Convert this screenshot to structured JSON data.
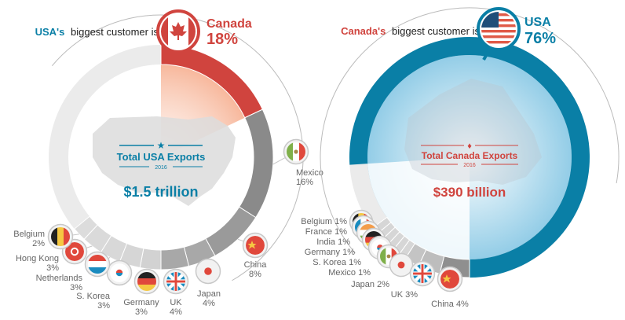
{
  "colors": {
    "usa_blue": "#0a7fa6",
    "canada_red": "#d0443e",
    "ring_light": "#ebebeb",
    "ring_mid": "#c8c8c8",
    "ring_dark": "#8a8a8a",
    "label_gray": "#666666"
  },
  "usa_panel": {
    "header_prefix": "USA's",
    "header_rest": "biggest customer is",
    "top_customer": "Canada",
    "top_customer_pct": "18%",
    "top_customer_icon": "canada-flag-icon",
    "center_icon": "star-icon",
    "center_title": "Total USA Exports",
    "center_year": "2016",
    "center_value": "$1.5 trillion"
  },
  "canada_panel": {
    "header_prefix": "Canada's",
    "header_rest": "biggest customer is",
    "top_customer": "USA",
    "top_customer_pct": "76%",
    "top_customer_icon": "usa-flag-icon",
    "center_icon": "maple-leaf-icon",
    "center_title": "Total Canada Exports",
    "center_year": "2016",
    "center_value": "$390 billion"
  },
  "chart_data": [
    {
      "type": "pie",
      "title": "Total USA Exports 2016",
      "total": "$1.5 trillion",
      "unit": "% of exports",
      "slices": [
        {
          "name": "Canada",
          "value": 18,
          "label": "18%",
          "flag": "canada-flag-icon"
        },
        {
          "name": "Mexico",
          "value": 16,
          "label": "16%",
          "flag": "mexico-flag-icon"
        },
        {
          "name": "China",
          "value": 8,
          "label": "8%",
          "flag": "china-flag-icon"
        },
        {
          "name": "Japan",
          "value": 4,
          "label": "4%",
          "flag": "japan-flag-icon"
        },
        {
          "name": "UK",
          "value": 4,
          "label": "4%",
          "flag": "uk-flag-icon"
        },
        {
          "name": "Germany",
          "value": 3,
          "label": "3%",
          "flag": "germany-flag-icon"
        },
        {
          "name": "S. Korea",
          "value": 3,
          "label": "3%",
          "flag": "south-korea-flag-icon"
        },
        {
          "name": "Netherlands",
          "value": 3,
          "label": "3%",
          "flag": "netherlands-flag-icon"
        },
        {
          "name": "Hong Kong",
          "value": 3,
          "label": "3%",
          "flag": "hong-kong-flag-icon"
        },
        {
          "name": "Belgium",
          "value": 2,
          "label": "2%",
          "flag": "belgium-flag-icon"
        },
        {
          "name": "Other",
          "value": 36,
          "label": ""
        }
      ]
    },
    {
      "type": "pie",
      "title": "Total Canada Exports 2016",
      "total": "$390 billion",
      "unit": "% of exports",
      "slices": [
        {
          "name": "USA",
          "value": 76,
          "label": "76%",
          "flag": "usa-flag-icon"
        },
        {
          "name": "China",
          "value": 4,
          "label": "China 4%",
          "flag": "china-flag-icon"
        },
        {
          "name": "UK",
          "value": 3,
          "label": "UK 3%",
          "flag": "uk-flag-icon"
        },
        {
          "name": "Japan",
          "value": 2,
          "label": "Japan 2%",
          "flag": "japan-flag-icon"
        },
        {
          "name": "Mexico",
          "value": 1,
          "label": "Mexico 1%",
          "flag": "mexico-flag-icon"
        },
        {
          "name": "S. Korea",
          "value": 1,
          "label": "S. Korea 1%",
          "flag": "south-korea-flag-icon"
        },
        {
          "name": "Germany",
          "value": 1,
          "label": "Germany 1%",
          "flag": "germany-flag-icon"
        },
        {
          "name": "India",
          "value": 1,
          "label": "India 1%",
          "flag": "india-flag-icon"
        },
        {
          "name": "France",
          "value": 1,
          "label": "France 1%",
          "flag": "france-flag-icon"
        },
        {
          "name": "Belgium",
          "value": 1,
          "label": "Belgium 1%",
          "flag": "belgium-flag-icon"
        },
        {
          "name": "Other",
          "value": 9,
          "label": ""
        }
      ]
    }
  ]
}
